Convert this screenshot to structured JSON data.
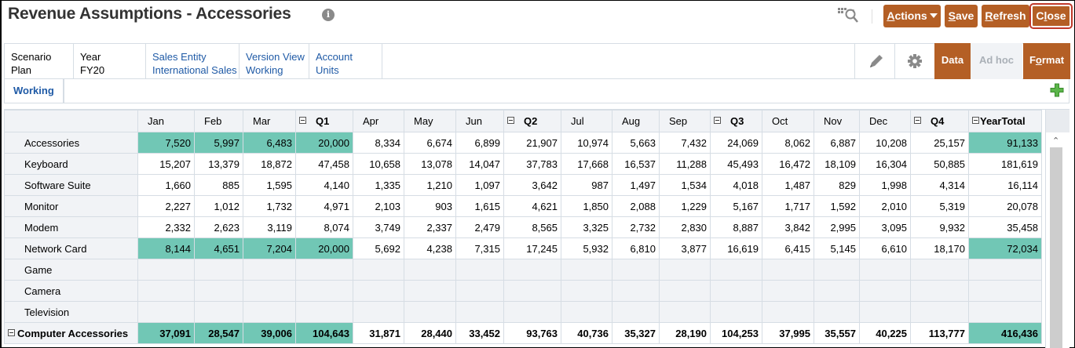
{
  "title": "Revenue Assumptions - Accessories",
  "toolbar": {
    "actions_label": "Actions",
    "actions_accel": "A",
    "save_label": "Save",
    "save_accel": "S",
    "refresh_label": "Refresh",
    "refresh_accel": "R",
    "close_label": "Close",
    "close_accel": "l",
    "icons": [
      "info-icon",
      "search-grid-icon",
      "caret-down-icon"
    ]
  },
  "colors": {
    "brand": "#b45f25",
    "highlight_cell": "#71c7b5",
    "link": "#1f5aa6",
    "header_bg": "#f1f3f6"
  },
  "pov": [
    {
      "dim": "Scenario",
      "member": "Plan",
      "link": false
    },
    {
      "dim": "Year",
      "member": "FY20",
      "link": false
    },
    {
      "dim": "Sales Entity",
      "member": "International Sales",
      "link": true
    },
    {
      "dim": "Version View",
      "member": "Working",
      "link": true
    },
    {
      "dim": "Account",
      "member": "Units",
      "link": true
    }
  ],
  "modes": {
    "data": "Data",
    "adhoc": "Ad hoc",
    "format": "Format",
    "format_accel": "o"
  },
  "tabs": [
    {
      "label": "Working",
      "active": true
    }
  ],
  "grid": {
    "columns": [
      "Jan",
      "Feb",
      "Mar",
      "Q1",
      "Apr",
      "May",
      "Jun",
      "Q2",
      "Jul",
      "Aug",
      "Sep",
      "Q3",
      "Oct",
      "Nov",
      "Dec",
      "Q4",
      "YearTotal"
    ],
    "rows": [
      {
        "label": "Accessories",
        "values": [
          "7,520",
          "5,997",
          "6,483",
          "20,000",
          "8,334",
          "6,674",
          "6,899",
          "21,907",
          "10,974",
          "5,663",
          "7,432",
          "24,069",
          "8,062",
          "6,887",
          "10,208",
          "25,157",
          "91,133"
        ],
        "highlight": [
          0,
          1,
          2,
          3,
          16
        ]
      },
      {
        "label": "Keyboard",
        "values": [
          "15,207",
          "13,379",
          "18,872",
          "47,458",
          "10,658",
          "13,078",
          "14,047",
          "37,783",
          "17,668",
          "16,537",
          "11,288",
          "45,493",
          "16,472",
          "18,109",
          "16,304",
          "50,885",
          "181,619"
        ],
        "highlight": []
      },
      {
        "label": "Software Suite",
        "values": [
          "1,660",
          "885",
          "1,595",
          "4,140",
          "1,335",
          "1,210",
          "1,097",
          "3,642",
          "987",
          "1,497",
          "1,534",
          "4,018",
          "1,487",
          "829",
          "1,998",
          "4,314",
          "16,114"
        ],
        "highlight": []
      },
      {
        "label": "Monitor",
        "values": [
          "2,227",
          "1,012",
          "1,732",
          "4,971",
          "2,103",
          "903",
          "1,615",
          "4,621",
          "1,850",
          "2,088",
          "1,229",
          "5,167",
          "1,717",
          "1,592",
          "2,010",
          "5,319",
          "20,078"
        ],
        "highlight": []
      },
      {
        "label": "Modem",
        "values": [
          "2,332",
          "2,623",
          "3,119",
          "8,074",
          "3,749",
          "2,337",
          "2,479",
          "8,565",
          "3,325",
          "2,732",
          "2,830",
          "8,887",
          "3,842",
          "2,995",
          "3,095",
          "9,932",
          "35,458"
        ],
        "highlight": []
      },
      {
        "label": "Network Card",
        "values": [
          "8,144",
          "4,651",
          "7,204",
          "20,000",
          "5,692",
          "4,238",
          "7,315",
          "17,245",
          "5,932",
          "6,810",
          "3,877",
          "16,619",
          "6,415",
          "5,145",
          "6,610",
          "18,170",
          "72,034"
        ],
        "highlight": [
          0,
          1,
          2,
          3,
          16
        ]
      },
      {
        "label": "Game",
        "values": [
          "",
          "",
          "",
          "",
          "",
          "",
          "",
          "",
          "",
          "",
          "",
          "",
          "",
          "",
          "",
          "",
          ""
        ],
        "highlight": [],
        "readonly": true
      },
      {
        "label": "Camera",
        "values": [
          "",
          "",
          "",
          "",
          "",
          "",
          "",
          "",
          "",
          "",
          "",
          "",
          "",
          "",
          "",
          "",
          ""
        ],
        "highlight": [],
        "readonly": true
      },
      {
        "label": "Television",
        "values": [
          "",
          "",
          "",
          "",
          "",
          "",
          "",
          "",
          "",
          "",
          "",
          "",
          "",
          "",
          "",
          "",
          ""
        ],
        "highlight": [],
        "readonly": true
      },
      {
        "label": "Computer Accessories",
        "values": [
          "37,091",
          "28,547",
          "39,006",
          "104,643",
          "31,871",
          "28,440",
          "33,452",
          "93,763",
          "40,736",
          "35,327",
          "28,190",
          "104,253",
          "37,995",
          "35,557",
          "40,225",
          "113,777",
          "416,436"
        ],
        "highlight": [
          0,
          1,
          2,
          3,
          16
        ],
        "total": true
      }
    ]
  }
}
